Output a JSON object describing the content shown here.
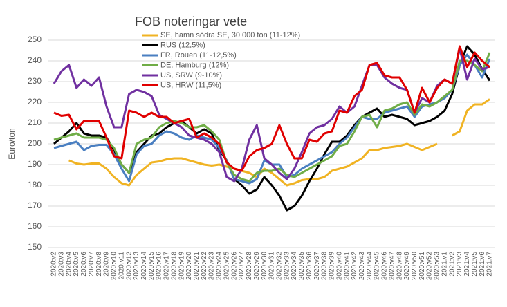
{
  "chart_data": {
    "type": "line",
    "title": "FOB noteringar vete",
    "y_label": "Euro/ton",
    "categories": [
      "2020:v2",
      "2020:v3",
      "2020:v4",
      "2020:v5",
      "2020:v6",
      "2020:v7",
      "2020:v8",
      "2020:v9",
      "2020:v10",
      "2020:v11",
      "2020:v12",
      "2020:v13",
      "2020:v14",
      "2020:v15",
      "2020:v16",
      "2020:v17",
      "2020:v18",
      "2020:v19",
      "2020:v20",
      "2020:v21",
      "2020:v22",
      "2020:v23",
      "2020:v24",
      "2020:v25",
      "2020:v26",
      "2020:v27",
      "2020:v28",
      "2020:v29",
      "2020:v30",
      "2020:v31",
      "2020:v32",
      "2020:v33",
      "2020:v34",
      "2020:v35",
      "2020:v36",
      "2020:v37",
      "2020:v38",
      "2020:v39",
      "2020:v40",
      "2020:v41",
      "2020:v42",
      "2020:v43",
      "2020:v44",
      "2020:v45",
      "2020:v46",
      "2020:v47",
      "2020:v48",
      "2020:v49",
      "2020:v50",
      "2020:v51",
      "2020:v52",
      "2020:v53",
      "2021:v1",
      "2021:v2",
      "2021:v3",
      "2021:v4",
      "2021:v5",
      "2021:v6",
      "2021:v7"
    ],
    "series": [
      {
        "name": "SE, hamn södra SE, 30 000 ton (11-12%)",
        "color": "#f0b323",
        "values": [
          null,
          null,
          192,
          190.5,
          190,
          190.5,
          190.5,
          188,
          184,
          181,
          180,
          185,
          188,
          191,
          191.5,
          192.5,
          193,
          193,
          192,
          191,
          190,
          189.5,
          190,
          189,
          188,
          187,
          186,
          184,
          188,
          186,
          183,
          180,
          181,
          182.5,
          183,
          183,
          184,
          187,
          188,
          189,
          191,
          193,
          197,
          197,
          198,
          198.5,
          199,
          200,
          198.5,
          197,
          198.5,
          200,
          null,
          204,
          206,
          216,
          219,
          219,
          221.5
        ]
      },
      {
        "name": "RUS (12,5%)",
        "color": "#000000",
        "values": [
          200,
          203,
          206,
          210,
          205,
          204,
          204,
          203,
          197,
          190,
          186,
          196,
          200,
          204,
          205,
          208,
          210,
          211,
          208,
          205,
          207,
          205,
          197,
          192,
          183,
          180,
          176,
          178,
          184,
          180,
          175,
          168,
          170,
          175,
          182,
          188,
          195,
          201,
          201,
          204,
          209,
          213,
          215,
          217,
          213,
          214,
          213,
          212,
          209,
          210,
          211,
          213,
          216,
          224,
          238,
          247,
          243,
          236,
          230.5
        ]
      },
      {
        "name": "FR, Rouen (11-12,5%)",
        "color": "#4a7fc1",
        "values": [
          198,
          199,
          200,
          201,
          197,
          199,
          199.5,
          199.5,
          195,
          188,
          182,
          195,
          199,
          200,
          204,
          206,
          205,
          203,
          202,
          204,
          203,
          202,
          198,
          192,
          183,
          182,
          181,
          183,
          192,
          190,
          190,
          184,
          185,
          188,
          190,
          192,
          194,
          196,
          200,
          203,
          208,
          213,
          212,
          212,
          215,
          216,
          217,
          218,
          213,
          218,
          219,
          220,
          222,
          226,
          238,
          243,
          238,
          232,
          241
        ]
      },
      {
        "name": "DE, Hamburg (12%)",
        "color": "#70ad47",
        "values": [
          202,
          203,
          204,
          205,
          203,
          203,
          203,
          202,
          198,
          190,
          186,
          200,
          202,
          203,
          208,
          210,
          211,
          210,
          208,
          208,
          209,
          206,
          202,
          191,
          185,
          183,
          182,
          186,
          187,
          187,
          188,
          185,
          184,
          186,
          188,
          190,
          192,
          194,
          199,
          200,
          206,
          213,
          214,
          208,
          216,
          217,
          219,
          220,
          214,
          219,
          218,
          220,
          223,
          226,
          240,
          240,
          238,
          235,
          244
        ]
      },
      {
        "name": "US, SRW (9-10%)",
        "color": "#7030a0",
        "values": [
          229,
          235,
          238,
          227,
          231,
          228,
          232,
          218,
          208,
          208,
          224,
          226,
          225,
          223,
          214,
          212,
          210,
          208,
          204,
          203,
          202,
          200,
          196,
          184,
          182,
          188,
          202,
          209,
          193,
          190,
          186,
          183,
          188,
          196,
          205,
          208,
          209,
          212,
          218,
          215,
          218,
          228,
          238,
          238,
          232,
          229,
          227,
          226,
          215,
          222,
          220,
          228,
          231,
          229,
          246,
          231,
          241,
          236,
          237
        ]
      },
      {
        "name": "US, HRW (11,5%)",
        "color": "#e00000",
        "values": [
          215,
          213.5,
          214,
          207,
          211,
          211,
          211,
          203,
          194,
          193,
          216,
          215,
          213,
          215,
          213,
          213,
          210,
          211,
          212,
          203,
          205,
          203,
          200,
          191,
          188,
          187,
          194,
          197,
          198,
          200,
          209,
          200,
          193,
          193,
          202,
          201,
          205,
          206,
          216,
          215,
          223,
          226,
          238,
          239,
          233,
          232,
          232,
          226,
          215,
          227,
          220,
          227,
          231,
          229,
          247,
          237,
          244,
          240,
          237
        ]
      }
    ],
    "ylim": [
      150,
      250
    ],
    "yticks": [
      150,
      160,
      170,
      180,
      190,
      200,
      210,
      220,
      230,
      240,
      250
    ],
    "grid": true
  }
}
